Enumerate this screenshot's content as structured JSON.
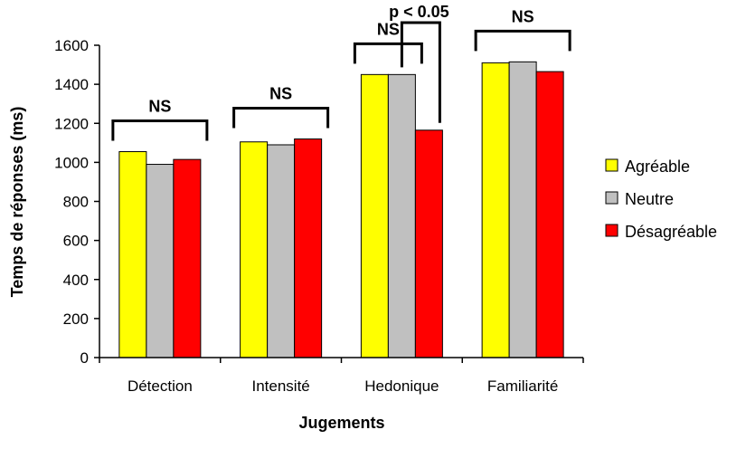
{
  "chart_data": {
    "type": "bar",
    "title": "",
    "xlabel": "Jugements",
    "ylabel": "Temps de réponses (ms)",
    "ylim": [
      0,
      1600
    ],
    "yticks": [
      0,
      200,
      400,
      600,
      800,
      1000,
      1200,
      1400,
      1600
    ],
    "categories": [
      "Détection",
      "Intensité",
      "Hedonique",
      "Familiarité"
    ],
    "series": [
      {
        "name": "Agréable",
        "color": "#ffff00",
        "values": [
          1055,
          1105,
          1450,
          1510
        ]
      },
      {
        "name": "Neutre",
        "color": "#c0c0c0",
        "values": [
          990,
          1090,
          1450,
          1515
        ]
      },
      {
        "name": "Désagréable",
        "color": "#ff0000",
        "values": [
          1015,
          1120,
          1165,
          1465
        ]
      }
    ],
    "legend_position": "right",
    "grid": false,
    "annotations": [
      {
        "text": "NS",
        "type": "group-bracket",
        "category": 0
      },
      {
        "text": "NS",
        "type": "group-bracket",
        "category": 1
      },
      {
        "text": "NS",
        "type": "group-bracket",
        "category": 2,
        "series_from": 0,
        "series_to": 1
      },
      {
        "text": "p < 0.05",
        "type": "comparison-bracket",
        "category": 2,
        "series_from": 1,
        "series_to": 2
      },
      {
        "text": "NS",
        "type": "group-bracket",
        "category": 3
      }
    ]
  }
}
